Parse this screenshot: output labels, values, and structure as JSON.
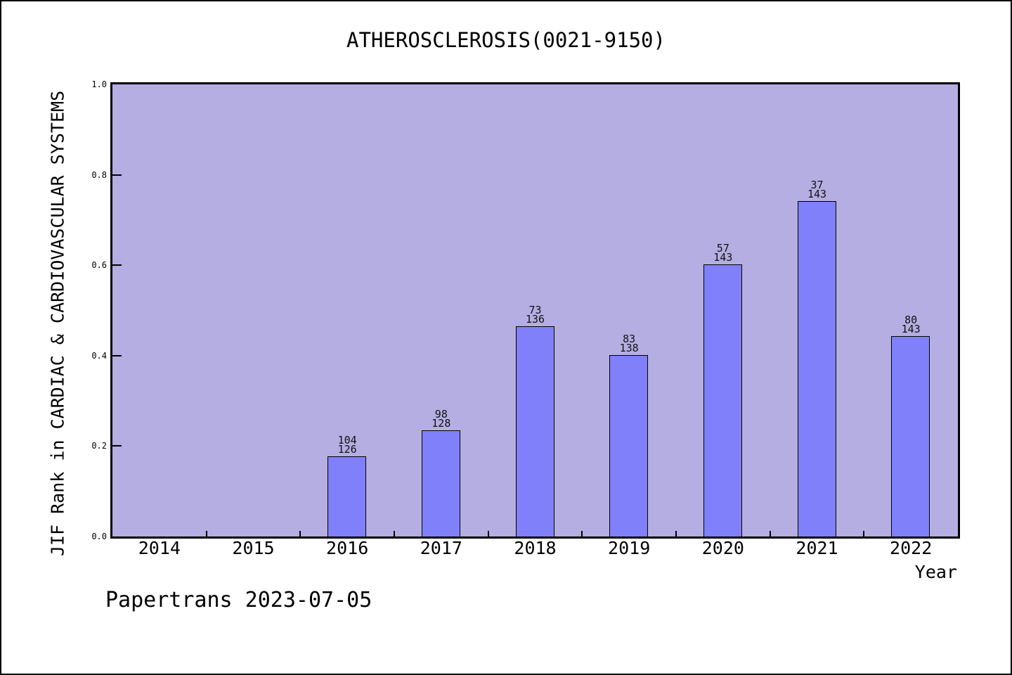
{
  "figure": {
    "watermark": "Papertrans 2023-07-05"
  },
  "chart_data": {
    "type": "bar",
    "title": "ATHEROSCLEROSIS(0021-9150)",
    "xlabel": "Year",
    "ylabel": "JIF Rank in CARDIAC & CARDIOVASCULAR SYSTEMS",
    "ylim": [
      0.0,
      1.0
    ],
    "yticks": [
      0.0,
      0.2,
      0.4,
      0.6,
      0.8,
      1.0
    ],
    "grid": false,
    "legend": null,
    "categories": [
      "2014",
      "2015",
      "2016",
      "2017",
      "2018",
      "2019",
      "2020",
      "2021",
      "2022"
    ],
    "bars": [
      {
        "category": "2016",
        "rank_label": "104",
        "total_label": "126",
        "value": 0.175
      },
      {
        "category": "2017",
        "rank_label": "98",
        "total_label": "128",
        "value": 0.234
      },
      {
        "category": "2018",
        "rank_label": "73",
        "total_label": "136",
        "value": 0.463
      },
      {
        "category": "2019",
        "rank_label": "83",
        "total_label": "138",
        "value": 0.399
      },
      {
        "category": "2020",
        "rank_label": "57",
        "total_label": "143",
        "value": 0.601
      },
      {
        "category": "2021",
        "rank_label": "37",
        "total_label": "143",
        "value": 0.741
      },
      {
        "category": "2022",
        "rank_label": "80",
        "total_label": "143",
        "value": 0.441
      }
    ],
    "colors": {
      "plot_background": "#b5aee2",
      "bar_fill": "#8080fa",
      "bar_border": "#000000",
      "text": "#000000"
    }
  }
}
